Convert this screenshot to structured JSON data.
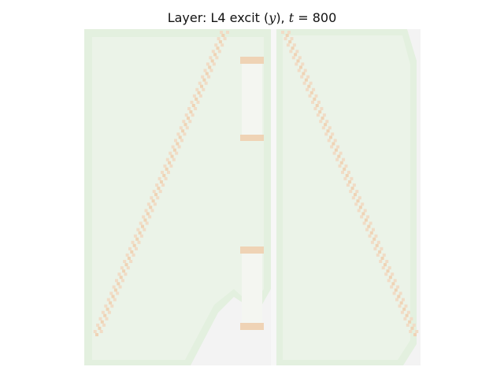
{
  "figure": {
    "title_prefix": "Layer: L4 excit (",
    "title_var": "y",
    "title_mid": "), ",
    "title_time_symbol": "t",
    "title_equals": " = ",
    "title_time_value": "800"
  },
  "heatmap": {
    "colors": {
      "background": "#f3f3f3",
      "field": "#e3f0df",
      "field_inner": "#ebf3e8",
      "activity": "#f1dcc6",
      "activity_strong": "#efd3b5",
      "bar": "#f4f6f1",
      "divider": "#f7f7f7"
    }
  }
}
